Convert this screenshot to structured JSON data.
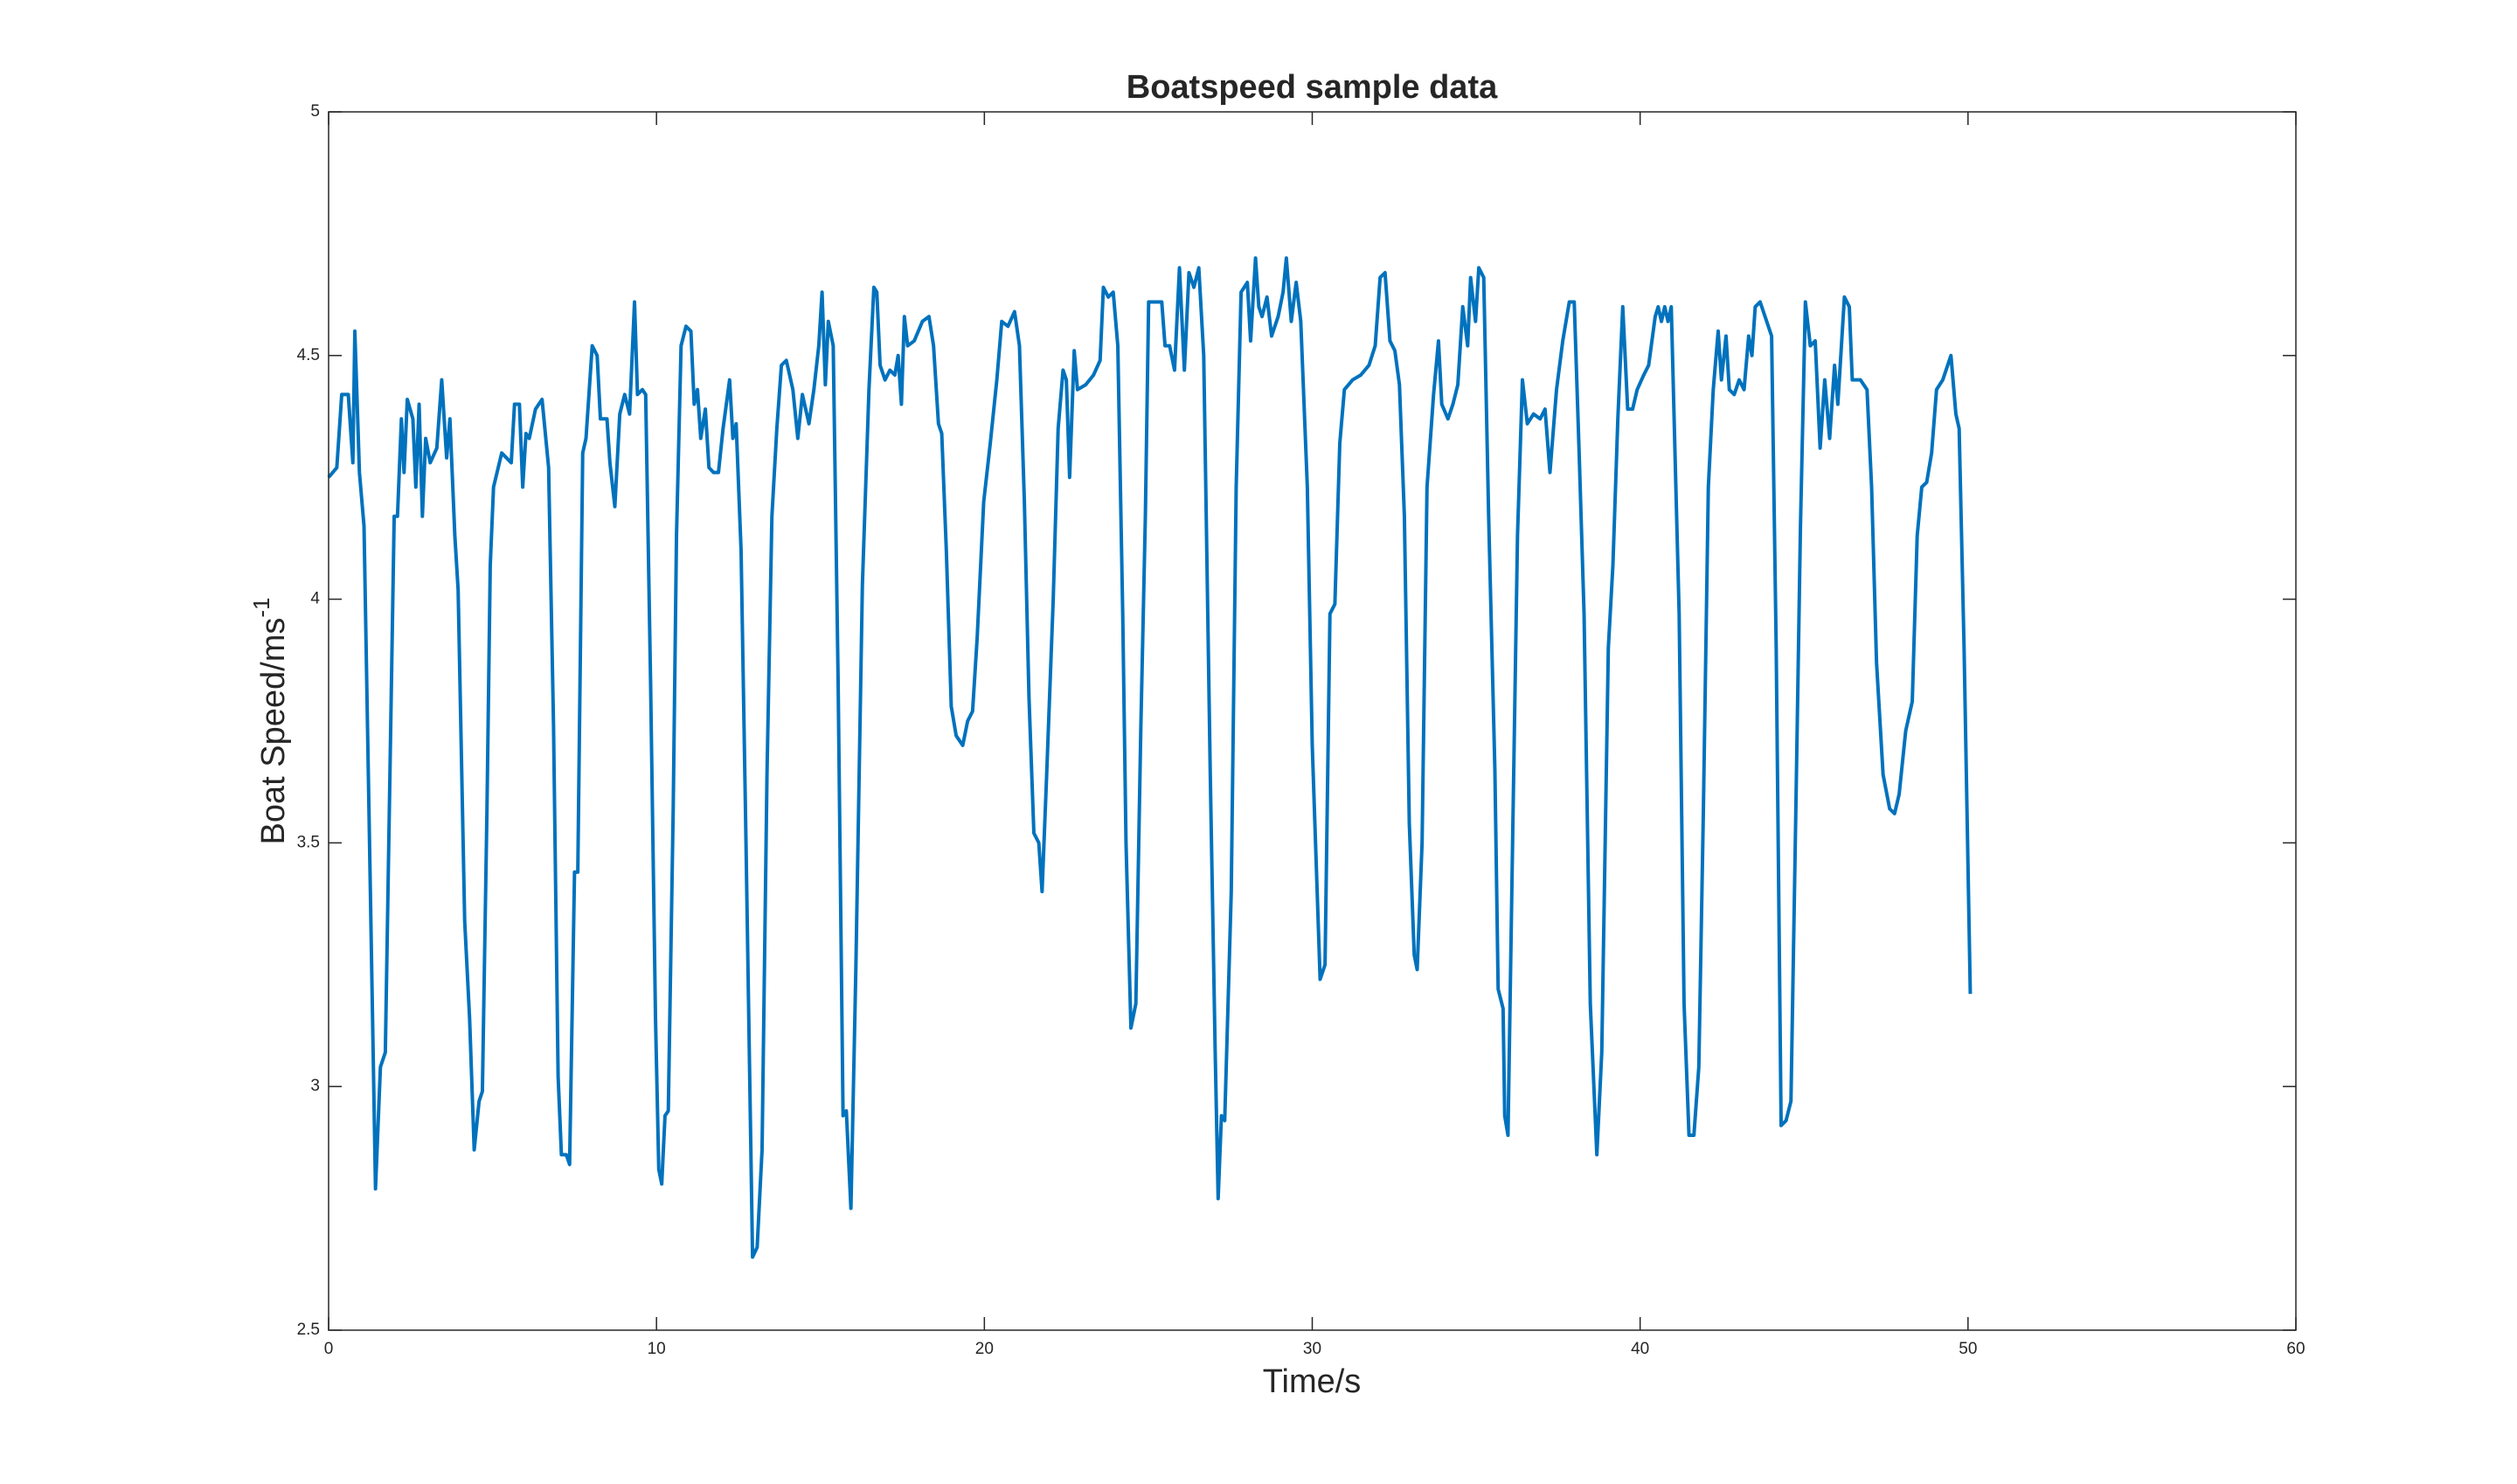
{
  "chart_data": {
    "type": "line",
    "title": "Boatspeed sample data",
    "xlabel": "Time/s",
    "ylabel": "Boat Speed/ms",
    "ylabel_superscript": "-1",
    "color": "#0072bd",
    "xlim": [
      0,
      60
    ],
    "xticks": [
      0,
      10,
      20,
      30,
      40,
      50,
      60
    ],
    "ylim": [
      2.5,
      5
    ],
    "yticks": [
      2.5,
      3,
      3.5,
      4,
      4.5,
      5
    ],
    "box": true,
    "x": [
      0,
      0.25,
      0.4,
      0.6,
      0.74,
      0.8,
      0.94,
      1.08,
      1.23,
      1.43,
      1.58,
      1.73,
      1.87,
      2.0,
      2.1,
      2.22,
      2.3,
      2.4,
      2.57,
      2.66,
      2.76,
      2.86,
      2.96,
      3.1,
      3.3,
      3.45,
      3.6,
      3.7,
      3.85,
      3.95,
      4.15,
      4.3,
      4.44,
      4.59,
      4.69,
      4.83,
      4.93,
      5.03,
      5.28,
      5.57,
      5.67,
      5.82,
      5.92,
      6.02,
      6.12,
      6.31,
      6.51,
      6.71,
      6.86,
      7.0,
      7.1,
      7.25,
      7.35,
      7.5,
      7.6,
      7.75,
      7.85,
      8.04,
      8.19,
      8.29,
      8.49,
      8.58,
      8.73,
      8.88,
      9.03,
      9.18,
      9.33,
      9.42,
      9.57,
      9.67,
      9.82,
      9.97,
      10.07,
      10.16,
      10.26,
      10.36,
      10.51,
      10.61,
      10.75,
      10.9,
      11.05,
      11.15,
      11.25,
      11.35,
      11.49,
      11.6,
      11.74,
      11.89,
      12.03,
      12.23,
      12.33,
      12.43,
      12.58,
      12.73,
      12.93,
      13.07,
      13.22,
      13.37,
      13.52,
      13.67,
      13.81,
      13.96,
      14.16,
      14.31,
      14.45,
      14.65,
      14.8,
      14.95,
      15.05,
      15.15,
      15.24,
      15.39,
      15.54,
      15.69,
      15.79,
      15.93,
      16.08,
      16.28,
      16.48,
      16.63,
      16.72,
      16.82,
      16.97,
      17.12,
      17.27,
      17.37,
      17.47,
      17.56,
      17.66,
      17.86,
      18.11,
      18.31,
      18.45,
      18.6,
      18.7,
      18.84,
      18.99,
      19.14,
      19.34,
      19.49,
      19.64,
      19.78,
      19.98,
      20.18,
      20.38,
      20.53,
      20.72,
      20.92,
      21.07,
      21.22,
      21.36,
      21.51,
      21.66,
      21.76,
      21.9,
      22.1,
      22.25,
      22.4,
      22.5,
      22.6,
      22.74,
      22.84,
      23.09,
      23.33,
      23.53,
      23.63,
      23.78,
      23.93,
      24.07,
      24.22,
      24.32,
      24.47,
      24.62,
      24.77,
      24.91,
      25.01,
      25.21,
      25.41,
      25.51,
      25.65,
      25.8,
      25.95,
      26.1,
      26.24,
      26.39,
      26.54,
      26.69,
      26.89,
      27.04,
      27.13,
      27.23,
      27.33,
      27.53,
      27.68,
      27.83,
      28.02,
      28.12,
      28.27,
      28.37,
      28.47,
      28.62,
      28.76,
      28.96,
      29.11,
      29.21,
      29.36,
      29.51,
      29.65,
      29.85,
      30.0,
      30.15,
      30.24,
      30.39,
      30.54,
      30.69,
      30.84,
      30.98,
      31.23,
      31.48,
      31.73,
      31.92,
      32.07,
      32.22,
      32.37,
      32.52,
      32.66,
      32.81,
      32.96,
      33.11,
      33.2,
      33.35,
      33.5,
      33.7,
      33.85,
      33.95,
      34.14,
      34.29,
      34.44,
      34.59,
      34.74,
      34.83,
      34.98,
      35.08,
      35.23,
      35.38,
      35.57,
      35.67,
      35.82,
      35.87,
      35.97,
      36.11,
      36.26,
      36.41,
      36.56,
      36.75,
      36.95,
      37.1,
      37.25,
      37.45,
      37.64,
      37.84,
      37.99,
      38.14,
      38.29,
      38.48,
      38.68,
      38.83,
      39.03,
      39.17,
      39.32,
      39.47,
      39.62,
      39.77,
      39.91,
      40.11,
      40.26,
      40.36,
      40.46,
      40.55,
      40.65,
      40.75,
      40.85,
      40.95,
      41.09,
      41.19,
      41.34,
      41.49,
      41.64,
      41.79,
      41.93,
      42.08,
      42.23,
      42.38,
      42.48,
      42.62,
      42.72,
      42.87,
      43.02,
      43.17,
      43.31,
      43.41,
      43.51,
      43.66,
      43.86,
      44.01,
      44.15,
      44.3,
      44.45,
      44.6,
      44.75,
      44.89,
      45.04,
      45.19,
      45.34,
      45.49,
      45.63,
      45.78,
      45.93,
      46.03,
      46.23,
      46.38,
      46.47,
      46.72,
      46.92,
      47.06,
      47.21,
      47.41,
      47.61,
      47.76,
      47.9,
      48.1,
      48.3,
      48.45,
      48.59,
      48.74,
      48.89,
      49.04,
      49.23,
      49.48,
      49.63,
      49.73,
      49.88,
      50.07
    ],
    "values": [
      4.25,
      4.27,
      4.42,
      4.42,
      4.28,
      4.55,
      4.26,
      4.15,
      3.57,
      2.79,
      3.04,
      3.07,
      3.64,
      4.17,
      4.17,
      4.37,
      4.26,
      4.41,
      4.37,
      4.23,
      4.4,
      4.17,
      4.33,
      4.28,
      4.31,
      4.45,
      4.29,
      4.37,
      4.13,
      4.02,
      3.34,
      3.14,
      2.87,
      2.97,
      2.99,
      3.57,
      4.07,
      4.23,
      4.3,
      4.28,
      4.4,
      4.4,
      4.23,
      4.34,
      4.33,
      4.39,
      4.41,
      4.27,
      3.74,
      3.02,
      2.86,
      2.86,
      2.84,
      3.44,
      3.44,
      4.3,
      4.33,
      4.52,
      4.5,
      4.37,
      4.37,
      4.28,
      4.19,
      4.38,
      4.42,
      4.38,
      4.61,
      4.42,
      4.43,
      4.42,
      3.83,
      3.14,
      2.83,
      2.8,
      2.94,
      2.95,
      3.57,
      4.13,
      4.52,
      4.56,
      4.55,
      4.4,
      4.43,
      4.33,
      4.39,
      4.27,
      4.26,
      4.26,
      4.35,
      4.45,
      4.33,
      4.36,
      4.1,
      3.5,
      2.65,
      2.67,
      2.87,
      3.64,
      4.17,
      4.35,
      4.48,
      4.49,
      4.43,
      4.33,
      4.42,
      4.36,
      4.43,
      4.52,
      4.63,
      4.44,
      4.57,
      4.52,
      3.83,
      2.94,
      2.95,
      2.75,
      3.24,
      4.03,
      4.43,
      4.64,
      4.63,
      4.48,
      4.45,
      4.47,
      4.46,
      4.5,
      4.4,
      4.58,
      4.52,
      4.53,
      4.57,
      4.58,
      4.52,
      4.36,
      4.34,
      4.1,
      3.78,
      3.72,
      3.7,
      3.75,
      3.77,
      3.92,
      4.2,
      4.32,
      4.45,
      4.57,
      4.56,
      4.59,
      4.52,
      4.2,
      3.8,
      3.52,
      3.5,
      3.4,
      3.64,
      4.0,
      4.35,
      4.47,
      4.45,
      4.25,
      4.51,
      4.43,
      4.44,
      4.46,
      4.49,
      4.64,
      4.62,
      4.63,
      4.52,
      3.97,
      3.5,
      3.12,
      3.17,
      3.73,
      4.17,
      4.61,
      4.61,
      4.61,
      4.52,
      4.52,
      4.47,
      4.68,
      4.47,
      4.67,
      4.64,
      4.68,
      4.5,
      3.64,
      3.07,
      2.77,
      2.94,
      2.93,
      3.4,
      4.23,
      4.63,
      4.65,
      4.53,
      4.7,
      4.6,
      4.58,
      4.62,
      4.54,
      4.58,
      4.63,
      4.7,
      4.57,
      4.65,
      4.57,
      4.23,
      3.7,
      3.4,
      3.22,
      3.25,
      3.97,
      3.99,
      4.32,
      4.43,
      4.45,
      4.46,
      4.48,
      4.52,
      4.66,
      4.67,
      4.53,
      4.51,
      4.44,
      4.17,
      3.54,
      3.27,
      3.24,
      3.5,
      4.23,
      4.42,
      4.53,
      4.4,
      4.37,
      4.4,
      4.44,
      4.6,
      4.52,
      4.66,
      4.57,
      4.68,
      4.66,
      4.17,
      3.65,
      3.2,
      3.16,
      2.94,
      2.9,
      3.5,
      4.13,
      4.45,
      4.36,
      4.38,
      4.37,
      4.39,
      4.26,
      4.43,
      4.53,
      4.61,
      4.61,
      4.3,
      3.97,
      3.17,
      2.86,
      3.07,
      3.9,
      4.07,
      4.37,
      4.6,
      4.39,
      4.39,
      4.43,
      4.46,
      4.48,
      4.53,
      4.58,
      4.6,
      4.57,
      4.6,
      4.57,
      4.6,
      4.23,
      3.97,
      3.17,
      2.9,
      2.9,
      3.04,
      3.57,
      4.23,
      4.43,
      4.55,
      4.45,
      4.54,
      4.43,
      4.42,
      4.45,
      4.43,
      4.54,
      4.5,
      4.6,
      4.61,
      4.57,
      4.54,
      3.9,
      2.92,
      2.93,
      2.97,
      3.57,
      4.15,
      4.61,
      4.52,
      4.53,
      4.31,
      4.45,
      4.33,
      4.48,
      4.4,
      4.62,
      4.6,
      4.45,
      4.45,
      4.43,
      4.23,
      3.87,
      3.64,
      3.57,
      3.56,
      3.6,
      3.73,
      3.79,
      4.13,
      4.23,
      4.24,
      4.3,
      4.43,
      4.45,
      4.5,
      4.38,
      4.35,
      3.9,
      3.19
    ]
  }
}
